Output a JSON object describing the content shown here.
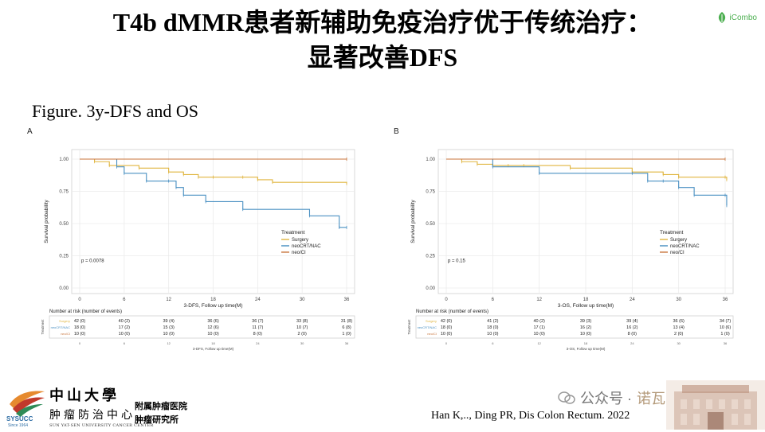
{
  "slide": {
    "title_line1": "T4b dMMR患者新辅助免疫治疗优于传统治疗：",
    "title_line2": "显著改善DFS",
    "brand_text": "iCombo",
    "figure_title": "Figure. 3y-DFS and OS",
    "citation": "Han K,.., Ding PR, Dis Colon Rectum. 2022",
    "wechat_label": "公众号 ·",
    "wechat_suffix": "诺瓦",
    "logo_text": "SYSUCC",
    "logo_year": "Since 1964",
    "university_name": "中山大學",
    "center_name": "肿瘤防治中心",
    "center_english": "SUN YAT-SEN UNIVERSITY CANCER CENTER",
    "affiliated_line1": "附属肿瘤医院",
    "affiliated_line2": "肿瘤研究所"
  },
  "colors": {
    "surgery": "#e0b53f",
    "neocrt_nac": "#4a90c2",
    "neo_ci": "#c8733a",
    "grid": "#ebebeb",
    "brand_green": "#4caf50"
  },
  "chart_data": [
    {
      "type": "line",
      "panel_label": "A",
      "xlabel": "3-DFS, Follow up time(M)",
      "ylabel": "Survival probability",
      "xlim": [
        0,
        36
      ],
      "ylim": [
        0,
        1
      ],
      "xticks": [
        0,
        6,
        12,
        18,
        24,
        30,
        36
      ],
      "yticks": [
        "0.00",
        "0.25",
        "0.50",
        "0.75",
        "1.00"
      ],
      "grid": true,
      "legend_title": "Treatment",
      "legend_position": "right",
      "pvalue": "p = 0.0078",
      "series": [
        {
          "name": "Surgery",
          "color_key": "surgery",
          "x": [
            0,
            2,
            4,
            8,
            12,
            14,
            16,
            18,
            22,
            24,
            26,
            36
          ],
          "y": [
            1.0,
            0.98,
            0.95,
            0.93,
            0.9,
            0.88,
            0.86,
            0.86,
            0.86,
            0.84,
            0.82,
            0.81
          ]
        },
        {
          "name": "neoCRT/NAC",
          "color_key": "neocrt_nac",
          "x": [
            0,
            5,
            6,
            9,
            12,
            13,
            14,
            17,
            22,
            31,
            35,
            36
          ],
          "y": [
            1.0,
            0.94,
            0.89,
            0.83,
            0.83,
            0.78,
            0.72,
            0.67,
            0.61,
            0.56,
            0.47,
            0.47
          ]
        },
        {
          "name": "neo/CI",
          "color_key": "neo_ci",
          "x": [
            0,
            36
          ],
          "y": [
            1.0,
            1.0
          ]
        }
      ],
      "risk_table": {
        "header": "Number at risk (number of events)",
        "xlabel": "3-DFS, Follow up time(M)",
        "side_label": "Treatment",
        "rows": [
          {
            "label": "Surgery",
            "color_key": "surgery",
            "values": [
              "42 (0)",
              "40 (2)",
              "39 (4)",
              "36 (6)",
              "36 (7)",
              "33 (8)",
              "31 (8)"
            ]
          },
          {
            "label": "neoCRT/NAC",
            "color_key": "neocrt_nac",
            "values": [
              "18 (0)",
              "17 (2)",
              "15 (3)",
              "12 (6)",
              "11 (7)",
              "10 (7)",
              "6 (8)"
            ]
          },
          {
            "label": "neo/CI",
            "color_key": "neo_ci",
            "values": [
              "10 (0)",
              "10 (0)",
              "10 (0)",
              "10 (0)",
              "8 (0)",
              "2 (0)",
              "1 (0)"
            ]
          }
        ],
        "ticks": [
          "0",
          "6",
          "12",
          "18",
          "24",
          "30",
          "36"
        ]
      }
    },
    {
      "type": "line",
      "panel_label": "B",
      "xlabel": "3-OS, Follow up time(M)",
      "ylabel": "Survival probability",
      "xlim": [
        0,
        36
      ],
      "ylim": [
        0,
        1
      ],
      "xticks": [
        0,
        6,
        12,
        18,
        24,
        30,
        36
      ],
      "yticks": [
        "0.00",
        "0.25",
        "0.50",
        "0.75",
        "1.00"
      ],
      "grid": true,
      "legend_title": "Treatment",
      "legend_position": "right",
      "pvalue": "p = 0.15",
      "series": [
        {
          "name": "Surgery",
          "color_key": "surgery",
          "x": [
            0,
            2,
            4,
            6,
            8,
            10,
            16,
            24,
            28,
            30,
            36,
            36.2
          ],
          "y": [
            1.0,
            0.98,
            0.96,
            0.95,
            0.95,
            0.95,
            0.93,
            0.9,
            0.88,
            0.86,
            0.86,
            0.84
          ]
        },
        {
          "name": "neoCRT/NAC",
          "color_key": "neocrt_nac",
          "x": [
            0,
            6,
            12,
            24,
            26,
            28,
            30,
            32,
            36,
            36.2
          ],
          "y": [
            1.0,
            0.94,
            0.89,
            0.89,
            0.83,
            0.83,
            0.78,
            0.72,
            0.72,
            0.64
          ]
        },
        {
          "name": "neo/CI",
          "color_key": "neo_ci",
          "x": [
            0,
            36
          ],
          "y": [
            1.0,
            1.0
          ]
        }
      ],
      "risk_table": {
        "header": "Number at risk (number of events)",
        "xlabel": "3-OS, Follow up time(M)",
        "side_label": "Treatment",
        "rows": [
          {
            "label": "Surgery",
            "color_key": "surgery",
            "values": [
              "42 (0)",
              "41 (2)",
              "40 (2)",
              "39 (3)",
              "39 (4)",
              "36 (6)",
              "34 (7)"
            ]
          },
          {
            "label": "neoCRT/NAC",
            "color_key": "neocrt_nac",
            "values": [
              "18 (0)",
              "18 (0)",
              "17 (1)",
              "16 (2)",
              "16 (2)",
              "13 (4)",
              "10 (6)"
            ]
          },
          {
            "label": "neo/CI",
            "color_key": "neo_ci",
            "values": [
              "10 (0)",
              "10 (0)",
              "10 (0)",
              "10 (0)",
              "8 (0)",
              "2 (0)",
              "1 (0)"
            ]
          }
        ],
        "ticks": [
          "0",
          "6",
          "12",
          "18",
          "24",
          "30",
          "36"
        ]
      }
    }
  ]
}
